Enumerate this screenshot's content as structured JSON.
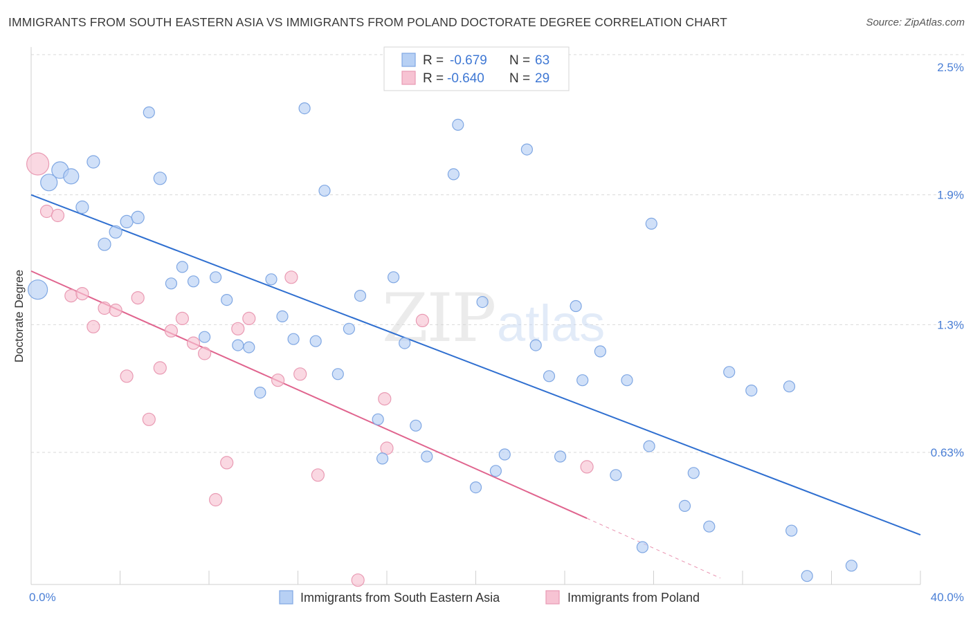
{
  "title": "IMMIGRANTS FROM SOUTH EASTERN ASIA VS IMMIGRANTS FROM POLAND DOCTORATE DEGREE CORRELATION CHART",
  "source": "Source: ZipAtlas.com",
  "watermark": {
    "zip": "ZIP",
    "atlas": "atlas"
  },
  "colors": {
    "blue_fill": "#b7d0f4",
    "blue_stroke": "#7fa7e3",
    "blue_line": "#2f6fd0",
    "pink_fill": "#f7c3d3",
    "pink_stroke": "#e99ab3",
    "pink_line": "#e0648e",
    "grid": "#d9d9d9",
    "tick_text": "#4a7fd6"
  },
  "legend": {
    "r_label": "R =",
    "n_label": "N =",
    "entries": [
      {
        "r": "-0.679",
        "n": "63"
      },
      {
        "r": "-0.640",
        "n": "29"
      }
    ]
  },
  "chart_data": {
    "type": "scatter",
    "title": "IMMIGRANTS FROM SOUTH EASTERN ASIA VS IMMIGRANTS FROM POLAND DOCTORATE DEGREE CORRELATION CHART",
    "xlabel": "",
    "ylabel": "Doctorate Degree",
    "xlim": [
      0,
      40
    ],
    "ylim": [
      0,
      2.56
    ],
    "x_ticks_labeled": [
      {
        "value": 0,
        "label": "0.0%"
      },
      {
        "value": 40,
        "label": "40.0%"
      }
    ],
    "x_ticks_minor": [
      4,
      8,
      12,
      16,
      20,
      24,
      28,
      32,
      36,
      40
    ],
    "y_ticks": [
      {
        "value": 2.5,
        "label": "2.5%"
      },
      {
        "value": 1.88,
        "label": "1.9%"
      },
      {
        "value": 1.25,
        "label": "1.3%"
      },
      {
        "value": 0.63,
        "label": "0.63%"
      }
    ],
    "grid": true,
    "series": [
      {
        "name": "Immigrants from South Eastern Asia",
        "r": -0.679,
        "n": 63,
        "trend": {
          "x0": 0,
          "y0": 1.88,
          "x1": 40,
          "y1": 0.23
        },
        "points": [
          [
            0.3,
            1.42,
            14
          ],
          [
            0.8,
            1.94,
            12
          ],
          [
            1.3,
            2.0,
            12
          ],
          [
            1.8,
            1.97,
            11
          ],
          [
            2.3,
            1.82,
            9
          ],
          [
            2.8,
            2.04,
            9
          ],
          [
            3.3,
            1.64,
            9
          ],
          [
            3.8,
            1.7,
            9
          ],
          [
            4.3,
            1.75,
            9
          ],
          [
            4.8,
            1.77,
            9
          ],
          [
            5.3,
            2.28,
            8
          ],
          [
            5.8,
            1.96,
            9
          ],
          [
            6.3,
            1.45,
            8
          ],
          [
            6.8,
            1.53,
            8
          ],
          [
            7.3,
            1.46,
            8
          ],
          [
            7.8,
            1.19,
            8
          ],
          [
            8.3,
            1.48,
            8
          ],
          [
            8.8,
            1.37,
            8
          ],
          [
            9.3,
            1.15,
            8
          ],
          [
            9.8,
            1.14,
            8
          ],
          [
            10.3,
            0.92,
            8
          ],
          [
            10.8,
            1.47,
            8
          ],
          [
            11.3,
            1.29,
            8
          ],
          [
            11.8,
            1.18,
            8
          ],
          [
            12.3,
            2.3,
            8
          ],
          [
            12.8,
            1.17,
            8
          ],
          [
            13.2,
            1.9,
            8
          ],
          [
            13.8,
            1.01,
            8
          ],
          [
            14.3,
            1.23,
            8
          ],
          [
            14.8,
            1.39,
            8
          ],
          [
            15.6,
            0.79,
            8
          ],
          [
            15.8,
            0.6,
            8
          ],
          [
            16.3,
            1.48,
            8
          ],
          [
            16.8,
            1.16,
            8
          ],
          [
            17.3,
            0.76,
            8
          ],
          [
            17.8,
            0.61,
            8
          ],
          [
            19.0,
            1.98,
            8
          ],
          [
            19.2,
            2.22,
            8
          ],
          [
            20.0,
            0.46,
            8
          ],
          [
            20.3,
            1.36,
            8
          ],
          [
            20.9,
            0.54,
            8
          ],
          [
            21.3,
            0.62,
            8
          ],
          [
            22.3,
            2.1,
            8
          ],
          [
            22.7,
            1.15,
            8
          ],
          [
            23.3,
            1.0,
            8
          ],
          [
            23.8,
            0.61,
            8
          ],
          [
            24.5,
            1.34,
            8
          ],
          [
            24.8,
            0.98,
            8
          ],
          [
            25.6,
            1.12,
            8
          ],
          [
            26.3,
            0.52,
            8
          ],
          [
            26.8,
            0.98,
            8
          ],
          [
            27.5,
            0.17,
            8
          ],
          [
            27.8,
            0.66,
            8
          ],
          [
            27.9,
            1.74,
            8
          ],
          [
            29.4,
            0.37,
            8
          ],
          [
            29.8,
            0.53,
            8
          ],
          [
            30.5,
            0.27,
            8
          ],
          [
            31.4,
            1.02,
            8
          ],
          [
            32.4,
            0.93,
            8
          ],
          [
            34.1,
            0.95,
            8
          ],
          [
            34.2,
            0.25,
            8
          ],
          [
            34.9,
            0.03,
            8
          ],
          [
            36.9,
            0.08,
            8
          ]
        ]
      },
      {
        "name": "Immigrants from Poland",
        "r": -0.64,
        "n": 29,
        "trend": {
          "x0": 0,
          "y0": 1.51,
          "x1": 25.0,
          "y1": 0.31,
          "dash_x1": 31.0,
          "dash_y1": 0.02
        },
        "points": [
          [
            0.3,
            2.03,
            16
          ],
          [
            0.7,
            1.8,
            9
          ],
          [
            1.2,
            1.78,
            9
          ],
          [
            1.8,
            1.39,
            9
          ],
          [
            2.3,
            1.4,
            9
          ],
          [
            2.8,
            1.24,
            9
          ],
          [
            3.3,
            1.33,
            9
          ],
          [
            3.8,
            1.32,
            9
          ],
          [
            4.3,
            1.0,
            9
          ],
          [
            4.8,
            1.38,
            9
          ],
          [
            5.3,
            0.79,
            9
          ],
          [
            5.8,
            1.04,
            9
          ],
          [
            6.3,
            1.22,
            9
          ],
          [
            6.8,
            1.28,
            9
          ],
          [
            7.3,
            1.16,
            9
          ],
          [
            7.8,
            1.11,
            9
          ],
          [
            8.3,
            0.4,
            9
          ],
          [
            8.8,
            0.58,
            9
          ],
          [
            9.3,
            1.23,
            9
          ],
          [
            9.8,
            1.28,
            9
          ],
          [
            11.1,
            0.98,
            9
          ],
          [
            11.7,
            1.48,
            9
          ],
          [
            12.1,
            1.01,
            9
          ],
          [
            12.9,
            0.52,
            9
          ],
          [
            14.7,
            0.01,
            9
          ],
          [
            15.9,
            0.89,
            9
          ],
          [
            16.0,
            0.65,
            9
          ],
          [
            17.6,
            1.27,
            9
          ],
          [
            25.0,
            0.56,
            9
          ]
        ]
      }
    ]
  }
}
